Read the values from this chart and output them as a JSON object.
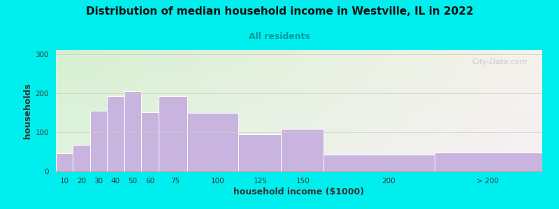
{
  "title": "Distribution of median household income in Westville, IL in 2022",
  "subtitle": "All residents",
  "xlabel": "household income ($1000)",
  "ylabel": "households",
  "background_outer": "#00EEEE",
  "bar_color": "#c8b4de",
  "bar_edge_color": "#ffffff",
  "title_color": "#111111",
  "subtitle_color": "#009999",
  "watermark": "City-Data.com",
  "values": [
    47,
    67,
    155,
    193,
    205,
    152,
    193,
    150,
    95,
    108,
    42,
    48
  ],
  "bar_lefts": [
    5,
    15,
    25,
    35,
    45,
    55,
    65,
    82,
    112,
    137,
    162,
    227
  ],
  "bar_widths": [
    10,
    10,
    10,
    10,
    10,
    10,
    17,
    30,
    25,
    25,
    65,
    63
  ],
  "xlim": [
    5,
    290
  ],
  "ylim": [
    0,
    310
  ],
  "yticks": [
    0,
    100,
    200,
    300
  ],
  "xtick_positions": [
    10,
    20,
    30,
    40,
    50,
    60,
    75,
    100,
    125,
    150,
    200,
    258
  ],
  "xtick_labels": [
    "10",
    "20",
    "30",
    "40",
    "50",
    "60",
    "75",
    "100",
    "125",
    "150",
    "200",
    "> 200"
  ],
  "bg_colors_lr": [
    "#d4efd4",
    "#f0ede8"
  ],
  "bg_colors_tb": [
    "#e8f5e2",
    "#f5f0fa"
  ]
}
